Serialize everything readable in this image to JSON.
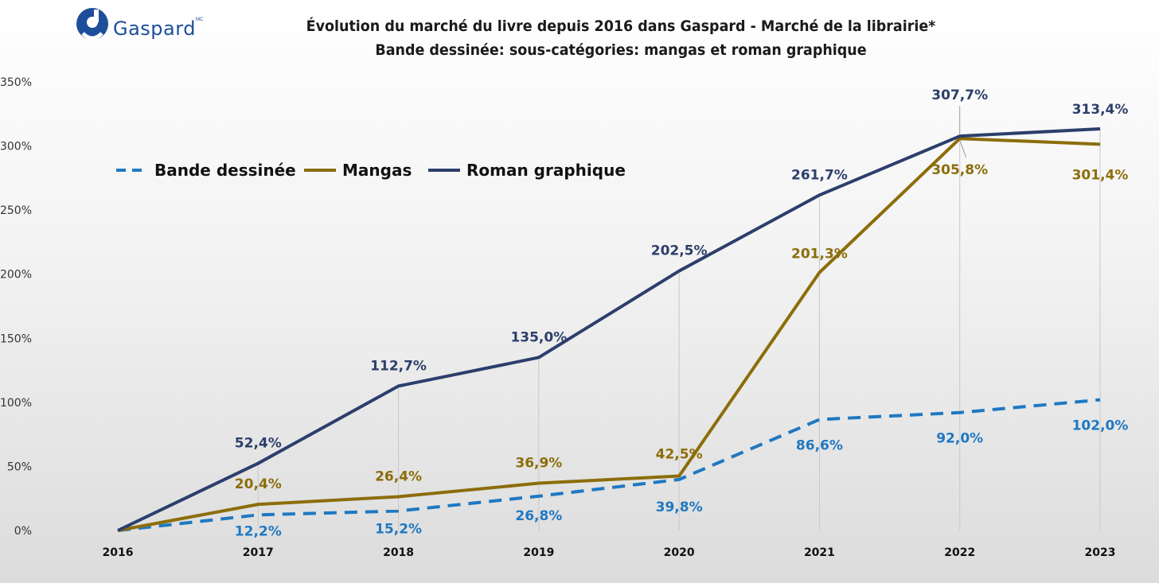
{
  "logo": {
    "text": "Gaspard",
    "mc": "MC",
    "color": "#1e4e9a"
  },
  "chart_data": {
    "type": "line",
    "title": "Évolution du marché du livre depuis 2016 dans Gaspard - Marché de la librairie*",
    "subtitle": "Bande dessinée: sous-catégories: mangas et roman graphique",
    "x": [
      "2016",
      "2017",
      "2018",
      "2019",
      "2020",
      "2021",
      "2022",
      "2023"
    ],
    "ylim": [
      0,
      350
    ],
    "yticks": [
      0,
      50,
      100,
      150,
      200,
      250,
      300,
      350
    ],
    "ytick_labels": [
      "0%",
      "50%",
      "100%",
      "150%",
      "200%",
      "250%",
      "300%",
      "350%"
    ],
    "grid": "vertical lines at each year",
    "legend_position": "top-left",
    "series": [
      {
        "name": "Bande dessinée",
        "color": "#1f78c1",
        "style": "dashed",
        "values": [
          0,
          12.2,
          15.2,
          26.8,
          39.8,
          86.6,
          92.0,
          102.0
        ],
        "labels": [
          "",
          "12,2%",
          "15,2%",
          "26,8%",
          "39,8%",
          "86,6%",
          "92,0%",
          "102,0%"
        ]
      },
      {
        "name": "Mangas",
        "color": "#8c6d0a",
        "style": "solid",
        "values": [
          0,
          20.4,
          26.4,
          36.9,
          42.5,
          201.3,
          305.8,
          301.4
        ],
        "labels": [
          "",
          "20,4%",
          "26,4%",
          "36,9%",
          "42,5%",
          "201,3%",
          "305,8%",
          "301,4%"
        ]
      },
      {
        "name": "Roman graphique",
        "color": "#2c3e6b",
        "style": "solid",
        "values": [
          0,
          52.4,
          112.7,
          135.0,
          202.5,
          261.7,
          307.7,
          313.4
        ],
        "labels": [
          "",
          "52,4%",
          "112,7%",
          "135,0%",
          "202,5%",
          "261,7%",
          "307,7%",
          "313,4%"
        ]
      }
    ]
  }
}
